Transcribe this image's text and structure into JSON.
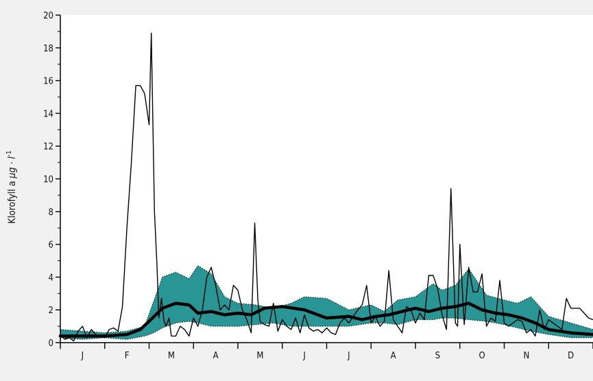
{
  "chart_data": {
    "type": "area",
    "ylabel": "Klorofyll a μg · l⁻¹",
    "ylabel_parts": {
      "main": "Klorofyll a ",
      "unit": "μg · l",
      "sup": "-1"
    },
    "ylim": [
      0,
      20
    ],
    "yticks": [
      "0",
      "2",
      "4",
      "6",
      "8",
      "10",
      "12",
      "14",
      "16",
      "18",
      "20"
    ],
    "months": [
      "J",
      "F",
      "M",
      "A",
      "M",
      "J",
      "J",
      "A",
      "S",
      "O",
      "N",
      "D"
    ],
    "colors": {
      "band": "#2a9595",
      "mean": "#000000",
      "observed": "#000000",
      "background": "#f1f1f1",
      "plot": "#ffffff"
    },
    "band": {
      "x": [
        0,
        0.5,
        1.0,
        1.5,
        1.9,
        2.1,
        2.3,
        2.6,
        2.9,
        3.1,
        3.4,
        3.7,
        4.0,
        4.4,
        4.8,
        5.2,
        5.5,
        6.0,
        6.5,
        7.0,
        7.3,
        7.6,
        8.0,
        8.4,
        8.6,
        8.9,
        9.2,
        9.6,
        10.0,
        10.3,
        10.6,
        11.0,
        11.5,
        12.0
      ],
      "upper": [
        0.8,
        0.7,
        0.6,
        0.7,
        1.0,
        2.5,
        4.0,
        4.3,
        3.9,
        4.7,
        4.2,
        2.8,
        2.4,
        2.3,
        2.1,
        2.4,
        2.8,
        2.7,
        2.0,
        2.3,
        1.9,
        2.6,
        2.8,
        3.6,
        3.2,
        3.5,
        4.5,
        2.9,
        2.6,
        2.4,
        2.8,
        1.6,
        1.2,
        0.8
      ],
      "lower": [
        0.3,
        0.2,
        0.3,
        0.2,
        0.4,
        0.6,
        0.9,
        1.2,
        1.3,
        1.2,
        1.0,
        1.0,
        1.0,
        1.1,
        1.2,
        1.0,
        1.0,
        1.0,
        1.0,
        1.2,
        1.2,
        1.1,
        1.4,
        1.4,
        1.5,
        1.5,
        1.4,
        1.3,
        1.1,
        0.9,
        0.7,
        0.5,
        0.3,
        0.3
      ]
    },
    "series": [
      {
        "name": "mean",
        "x": [
          0,
          0.5,
          1.0,
          1.5,
          1.8,
          2.0,
          2.3,
          2.6,
          2.9,
          3.1,
          3.4,
          3.7,
          4.0,
          4.3,
          4.6,
          5.0,
          5.5,
          6.0,
          6.5,
          6.8,
          7.1,
          7.4,
          7.7,
          8.0,
          8.3,
          8.6,
          8.9,
          9.2,
          9.5,
          9.8,
          10.1,
          10.4,
          10.7,
          11.0,
          11.5,
          12.0
        ],
        "values": [
          0.4,
          0.4,
          0.4,
          0.5,
          0.8,
          1.3,
          2.1,
          2.4,
          2.3,
          1.8,
          1.9,
          1.7,
          1.8,
          1.7,
          2.1,
          2.2,
          2.0,
          1.5,
          1.6,
          1.4,
          1.6,
          1.7,
          1.9,
          2.1,
          1.9,
          2.1,
          2.2,
          2.4,
          2.0,
          1.8,
          1.7,
          1.5,
          1.2,
          0.8,
          0.6,
          0.5
        ]
      },
      {
        "name": "observed",
        "x": [
          0,
          0.1,
          0.2,
          0.3,
          0.4,
          0.5,
          0.6,
          0.7,
          0.8,
          0.9,
          1.0,
          1.1,
          1.2,
          1.3,
          1.4,
          1.5,
          1.6,
          1.7,
          1.8,
          1.9,
          2.0,
          2.05,
          2.12,
          2.18,
          2.22,
          2.28,
          2.33,
          2.38,
          2.45,
          2.5,
          2.6,
          2.7,
          2.8,
          2.9,
          3.0,
          3.1,
          3.2,
          3.3,
          3.4,
          3.5,
          3.6,
          3.7,
          3.8,
          3.9,
          4.0,
          4.1,
          4.2,
          4.3,
          4.38,
          4.45,
          4.5,
          4.6,
          4.7,
          4.8,
          4.9,
          5.0,
          5.1,
          5.2,
          5.3,
          5.4,
          5.5,
          5.6,
          5.7,
          5.8,
          5.9,
          6.0,
          6.1,
          6.2,
          6.3,
          6.4,
          6.5,
          6.6,
          6.7,
          6.8,
          6.9,
          7.0,
          7.1,
          7.2,
          7.3,
          7.4,
          7.5,
          7.6,
          7.7,
          7.8,
          7.9,
          8.0,
          8.1,
          8.2,
          8.3,
          8.4,
          8.5,
          8.6,
          8.7,
          8.8,
          8.9,
          8.95,
          9.0,
          9.1,
          9.2,
          9.3,
          9.4,
          9.5,
          9.6,
          9.7,
          9.8,
          9.9,
          10.0,
          10.1,
          10.2,
          10.3,
          10.4,
          10.5,
          10.6,
          10.7,
          10.8,
          10.9,
          11.0,
          11.1,
          11.2,
          11.3,
          11.4,
          11.5,
          11.6,
          11.7,
          11.8,
          11.9,
          12.0
        ],
        "values": [
          0.5,
          0.2,
          0.3,
          0.1,
          0.7,
          1.0,
          0.3,
          0.8,
          0.5,
          0.4,
          0.3,
          0.8,
          0.9,
          0.7,
          2.2,
          7.0,
          11.0,
          15.7,
          15.7,
          15.2,
          13.3,
          18.9,
          8.0,
          4.5,
          1.5,
          2.7,
          1.4,
          1.0,
          1.5,
          0.4,
          0.4,
          1.0,
          0.8,
          0.4,
          1.5,
          1.0,
          2.0,
          4.0,
          4.6,
          3.5,
          2.0,
          2.3,
          2.0,
          3.5,
          3.2,
          2.0,
          1.4,
          0.6,
          7.3,
          2.6,
          1.3,
          1.1,
          1.0,
          2.4,
          0.7,
          1.4,
          1.0,
          0.8,
          1.5,
          0.6,
          1.7,
          0.9,
          0.7,
          0.8,
          0.6,
          0.9,
          0.6,
          0.5,
          1.2,
          1.5,
          1.2,
          1.6,
          2.0,
          2.3,
          3.5,
          1.2,
          1.6,
          1.0,
          1.3,
          4.4,
          1.4,
          1.0,
          0.6,
          2.2,
          2.0,
          1.2,
          1.8,
          1.4,
          4.1,
          4.1,
          3.3,
          1.7,
          0.8,
          9.4,
          1.2,
          1.0,
          6.0,
          1.1,
          4.6,
          3.1,
          3.1,
          4.2,
          1.0,
          1.5,
          1.3,
          3.8,
          1.2,
          1.0,
          1.2,
          1.4,
          1.3,
          0.6,
          0.8,
          0.4,
          2.0,
          0.8,
          1.4,
          1.2,
          1.0,
          0.8,
          2.7,
          2.1,
          2.1,
          2.1,
          1.8,
          1.5,
          1.4
        ]
      }
    ]
  }
}
